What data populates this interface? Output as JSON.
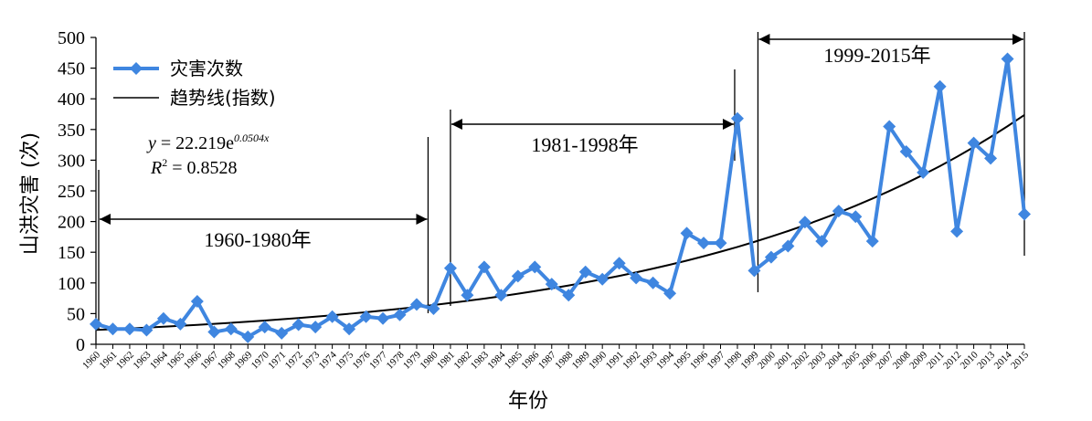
{
  "chart_data": {
    "type": "line",
    "xlabel": "年份",
    "ylabel": "山洪灾害 (次)",
    "ylim": [
      0,
      500
    ],
    "yticks": [
      0,
      50,
      100,
      150,
      200,
      250,
      300,
      350,
      400,
      450,
      500
    ],
    "x": [
      1960,
      1961,
      1962,
      1963,
      1964,
      1965,
      1966,
      1967,
      1968,
      1969,
      1970,
      1971,
      1972,
      1973,
      1974,
      1975,
      1976,
      1977,
      1978,
      1979,
      1980,
      1981,
      1982,
      1983,
      1984,
      1985,
      1986,
      1987,
      1988,
      1989,
      1990,
      1991,
      1992,
      1993,
      1994,
      1995,
      1996,
      1997,
      1998,
      1999,
      2000,
      2001,
      2002,
      2003,
      2004,
      2005,
      2006,
      2007,
      2008,
      2009,
      2011,
      2012,
      2010,
      2013,
      2014,
      2015
    ],
    "series": [
      {
        "name": "灾害次数",
        "color": "#3f86e0",
        "values": [
          33,
          25,
          25,
          23,
          42,
          33,
          70,
          20,
          25,
          12,
          28,
          18,
          32,
          28,
          45,
          25,
          45,
          42,
          48,
          65,
          58,
          124,
          80,
          126,
          80,
          111,
          126,
          98,
          80,
          118,
          106,
          132,
          108,
          100,
          83,
          181,
          165,
          165,
          368,
          120,
          142,
          160,
          199,
          168,
          217,
          208,
          168,
          355,
          314,
          280,
          420,
          184,
          328,
          303,
          465,
          212
        ]
      },
      {
        "name": "趋势线(指数)",
        "color": "#000000",
        "type": "exponential",
        "a": 22.219,
        "b": 0.0504
      }
    ],
    "equation": {
      "y_prefix": "y",
      "y_middle": " = 22.219e",
      "y_exponent": "0.0504x",
      "r2_base": "R",
      "r2_sup": "2",
      "r2_value": " = 0.8528"
    },
    "periods": [
      {
        "label": "1960-1980年",
        "start": 1960,
        "end": 1980
      },
      {
        "label": "1981-1998年",
        "start": 1981,
        "end": 1998
      },
      {
        "label": "1999-2015年",
        "start": 1999,
        "end": 2015
      }
    ],
    "legend_position": "top-left",
    "grid": false
  }
}
